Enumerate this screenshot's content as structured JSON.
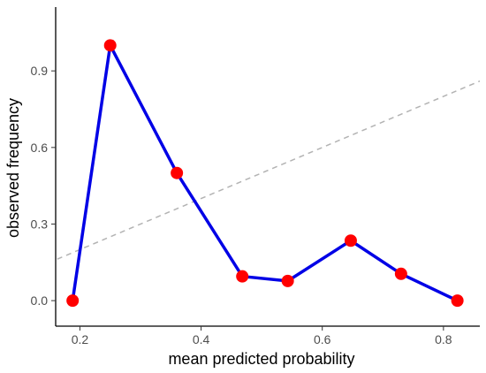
{
  "chart_data": {
    "type": "line",
    "title": "",
    "xlabel": "mean predicted probability",
    "ylabel": "observed frequency",
    "xlim": [
      0.16,
      0.86
    ],
    "ylim": [
      -0.1,
      1.15
    ],
    "x_ticks": [
      0.2,
      0.4,
      0.6,
      0.8
    ],
    "x_tick_labels": [
      "0.2",
      "0.4",
      "0.6",
      "0.8"
    ],
    "y_ticks": [
      0.0,
      0.3,
      0.6,
      0.9
    ],
    "y_tick_labels": [
      "0.0",
      "0.3",
      "0.6",
      "0.9"
    ],
    "grid": false,
    "series": [
      {
        "x": [
          0.188,
          0.25,
          0.36,
          0.468,
          0.543,
          0.647,
          0.73,
          0.823
        ],
        "y": [
          0.0,
          1.0,
          0.5,
          0.095,
          0.077,
          0.235,
          0.105,
          0.0
        ],
        "line_color": "#0000e6",
        "marker_color": "#ff0000"
      }
    ],
    "reference_line": {
      "x": [
        0.0,
        1.0
      ],
      "y": [
        0.0,
        1.0
      ],
      "style": "dashed",
      "color": "#b3b3b3"
    }
  }
}
